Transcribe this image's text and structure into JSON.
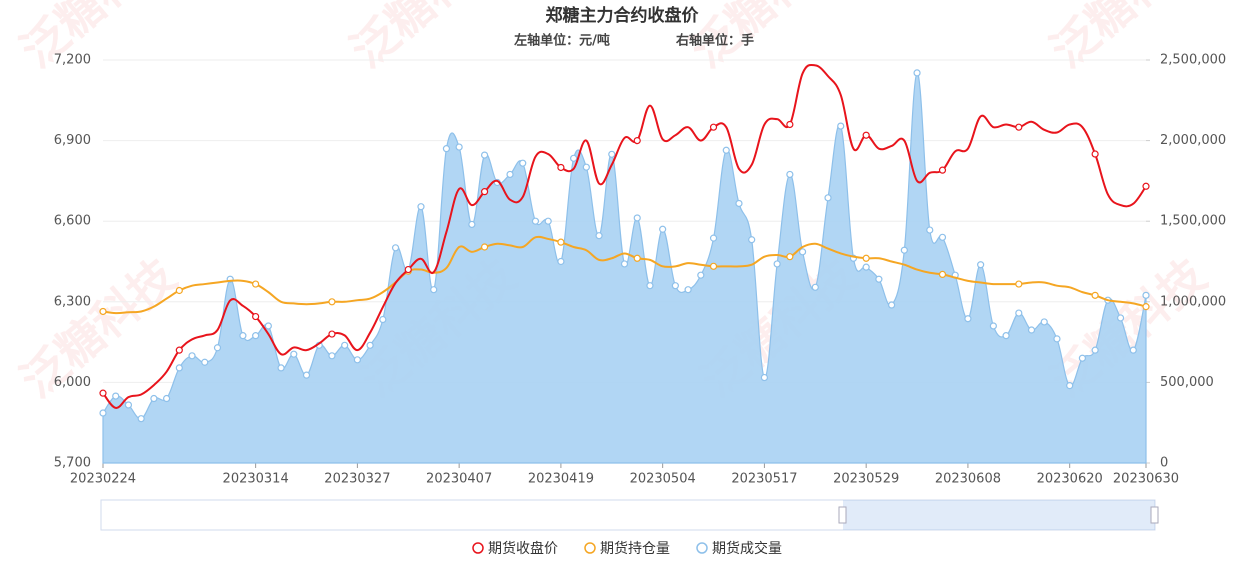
{
  "chart_data": {
    "type": "line",
    "title": "郑糖主力合约收盘价",
    "subtitle_left": "左轴单位：元/吨",
    "subtitle_right": "右轴单位：手",
    "watermark": "泛糖科技",
    "categories": [
      "20230224",
      null,
      null,
      null,
      null,
      null,
      null,
      null,
      null,
      null,
      null,
      null,
      "20230314",
      null,
      null,
      null,
      null,
      null,
      null,
      null,
      "20230327",
      null,
      null,
      null,
      null,
      null,
      null,
      null,
      "20230407",
      null,
      null,
      null,
      null,
      null,
      null,
      null,
      "20230419",
      null,
      null,
      null,
      null,
      null,
      null,
      null,
      "20230504",
      null,
      null,
      null,
      null,
      null,
      null,
      null,
      "20230517",
      null,
      null,
      null,
      null,
      null,
      null,
      null,
      "20230529",
      null,
      null,
      null,
      null,
      null,
      null,
      null,
      "20230608",
      null,
      null,
      null,
      null,
      null,
      null,
      null,
      "20230620",
      null,
      null,
      null,
      null,
      null,
      "20230630"
    ],
    "ylim": [
      5700,
      7200
    ],
    "yticks": [
      {
        "value": 5700,
        "label": "5,700"
      },
      {
        "value": 6000,
        "label": "6,000"
      },
      {
        "value": 6300,
        "label": "6,300"
      },
      {
        "value": 6600,
        "label": "6,600"
      },
      {
        "value": 6900,
        "label": "6,900"
      },
      {
        "value": 7200,
        "label": "7,200"
      }
    ],
    "y2lim": [
      0,
      2500000
    ],
    "y2ticks": [
      0,
      {
        "value": 500000,
        "label": "500,000"
      },
      {
        "value": 1000000,
        "label": "1,000,000"
      },
      {
        "value": 1500000,
        "label": "1,500,000"
      },
      {
        "value": 2000000,
        "label": "2,000,000"
      },
      {
        "value": 2500000,
        "label": "2,500,000"
      }
    ],
    "grid": true,
    "legend": "bottom",
    "series": [
      {
        "name": "期货收盘价",
        "color": "#e8141c",
        "axis": "y",
        "values": [
          5960,
          5905,
          5945,
          5955,
          5990,
          6040,
          6120,
          6160,
          6175,
          6195,
          6305,
          6285,
          6245,
          6180,
          6105,
          6130,
          6120,
          6145,
          6180,
          6175,
          6120,
          6185,
          6280,
          6370,
          6420,
          6460,
          6410,
          6560,
          6720,
          6660,
          6710,
          6750,
          6680,
          6690,
          6840,
          6850,
          6800,
          6795,
          6900,
          6740,
          6810,
          6910,
          6900,
          7030,
          6905,
          6920,
          6950,
          6900,
          6950,
          6950,
          6795,
          6810,
          6960,
          6980,
          6960,
          7150,
          7180,
          7140,
          7070,
          6870,
          6920,
          6870,
          6880,
          6900,
          6750,
          6780,
          6790,
          6860,
          6870,
          6990,
          6950,
          6960,
          6950,
          6970,
          6940,
          6930,
          6960,
          6950,
          6850,
          6700,
          6660,
          6665,
          6730
        ]
      },
      {
        "name": "期货持仓量",
        "color": "#f5a623",
        "axis": "y2",
        "values": [
          940000,
          930000,
          935000,
          940000,
          970000,
          1020000,
          1070000,
          1100000,
          1110000,
          1120000,
          1130000,
          1130000,
          1110000,
          1060000,
          1000000,
          990000,
          985000,
          990000,
          1000000,
          1000000,
          1010000,
          1020000,
          1060000,
          1120000,
          1190000,
          1200000,
          1180000,
          1210000,
          1340000,
          1310000,
          1340000,
          1360000,
          1350000,
          1340000,
          1400000,
          1390000,
          1370000,
          1340000,
          1320000,
          1260000,
          1270000,
          1300000,
          1270000,
          1260000,
          1220000,
          1220000,
          1240000,
          1230000,
          1220000,
          1220000,
          1220000,
          1230000,
          1280000,
          1290000,
          1280000,
          1340000,
          1360000,
          1330000,
          1300000,
          1280000,
          1270000,
          1270000,
          1250000,
          1230000,
          1200000,
          1180000,
          1170000,
          1150000,
          1130000,
          1120000,
          1110000,
          1110000,
          1110000,
          1120000,
          1120000,
          1100000,
          1090000,
          1060000,
          1040000,
          1010000,
          1000000,
          990000,
          970000
        ]
      },
      {
        "name": "期货成交量",
        "color": "#8ec0ea",
        "axis": "y2",
        "values": [
          310000,
          415000,
          360000,
          275000,
          400000,
          400000,
          590000,
          665000,
          625000,
          715000,
          1140000,
          790000,
          790000,
          850000,
          590000,
          675000,
          545000,
          730000,
          665000,
          730000,
          640000,
          730000,
          890000,
          1335000,
          1200000,
          1590000,
          1075000,
          1950000,
          1960000,
          1480000,
          1910000,
          1740000,
          1790000,
          1860000,
          1500000,
          1500000,
          1250000,
          1890000,
          1835000,
          1410000,
          1915000,
          1235000,
          1520000,
          1100000,
          1450000,
          1100000,
          1075000,
          1165000,
          1395000,
          1940000,
          1610000,
          1385000,
          530000,
          1235000,
          1790000,
          1310000,
          1090000,
          1645000,
          2090000,
          1270000,
          1215000,
          1140000,
          980000,
          1320000,
          2420000,
          1445000,
          1400000,
          1165000,
          895000,
          1230000,
          850000,
          790000,
          930000,
          825000,
          875000,
          770000,
          480000,
          650000,
          700000,
          1010000,
          900000,
          700000,
          1040000
        ]
      }
    ]
  }
}
